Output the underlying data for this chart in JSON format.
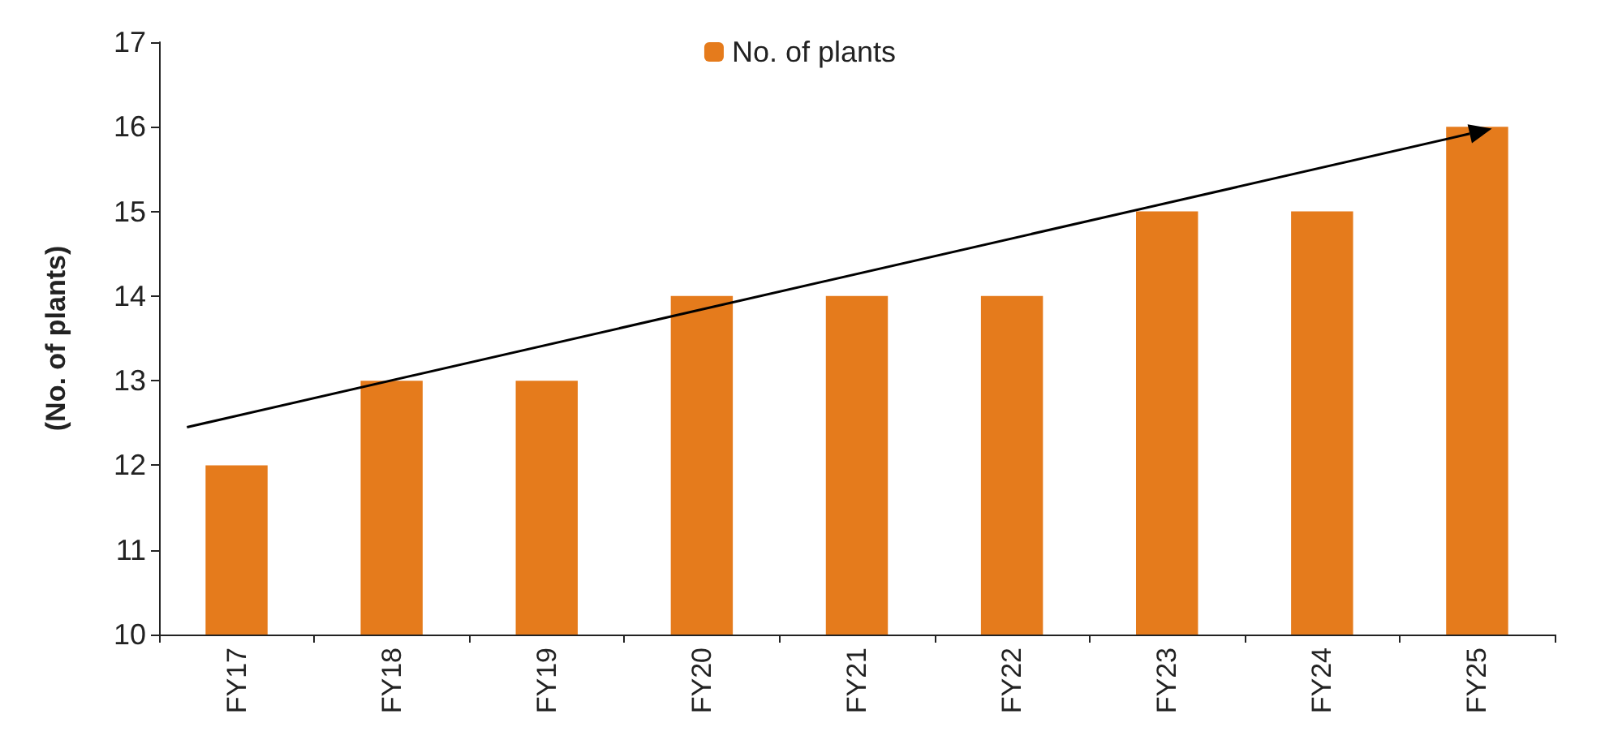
{
  "chart_data": {
    "type": "bar",
    "ylabel": "(No. of plants)",
    "categories": [
      "FY17",
      "FY18",
      "FY19",
      "FY20",
      "FY21",
      "FY22",
      "FY23",
      "FY24",
      "FY25"
    ],
    "series": [
      {
        "name": "No. of plants",
        "color": "#e57b1c",
        "values": [
          12,
          13,
          13,
          14,
          14,
          14,
          15,
          15,
          16
        ]
      }
    ],
    "ylim": [
      10,
      17
    ],
    "yticks": [
      10,
      11,
      12,
      13,
      14,
      15,
      16,
      17
    ],
    "grid": false,
    "legend": "top"
  }
}
